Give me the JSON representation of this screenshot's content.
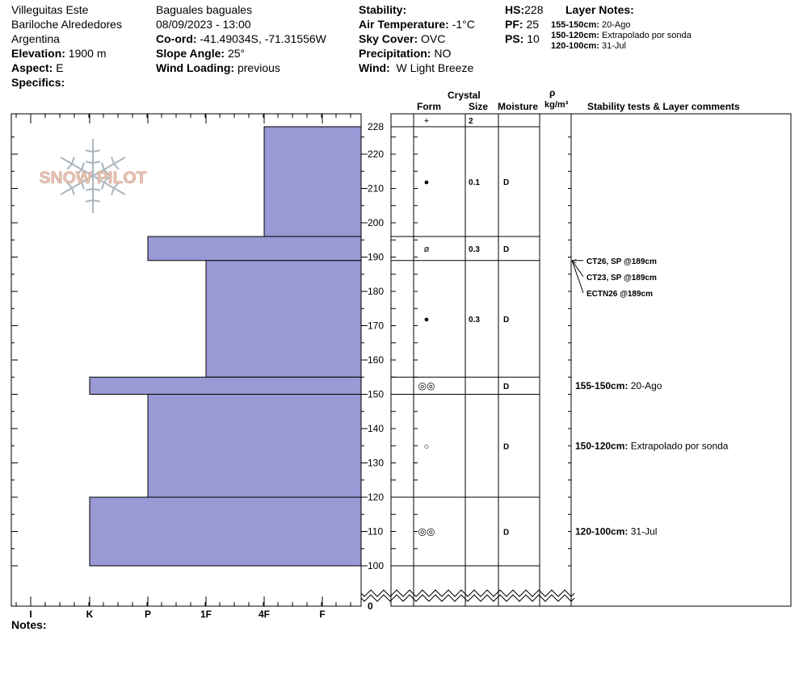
{
  "header": {
    "location1": "Villeguitas Este",
    "location2": "Bariloche Alrededores",
    "location3": "Argentina",
    "elevation_label": "Elevation:",
    "elevation_value": "1900 m",
    "aspect_label": "Aspect:",
    "aspect_value": "E",
    "specifics_label": "Specifics:",
    "observer": "Baguales baguales",
    "datetime": "08/09/2023 - 13:00",
    "coord_label": "Co-ord:",
    "coord_value": "-41.49034S, -71.31556W",
    "slope_label": "Slope Angle:",
    "slope_value": "25°",
    "wind_loading_label": "Wind Loading:",
    "wind_loading_value": "previous",
    "stability_label": "Stability:",
    "air_temp_label": "Air Temperature:",
    "air_temp_value": "-1°C",
    "sky_label": "Sky Cover:",
    "sky_value": "OVC",
    "precip_label": "Precipitation:",
    "precip_value": "NO",
    "wind_label": "Wind:",
    "wind_value": "W Light Breeze",
    "hs_label": "HS:",
    "hs_value": "228",
    "pf_label": "PF:",
    "pf_value": "25",
    "ps_label": "PS:",
    "ps_value": "10",
    "layer_notes_title": "Layer Notes:",
    "layer_notes": [
      {
        "range": "155-150cm:",
        "text": "20-Ago"
      },
      {
        "range": "150-120cm:",
        "text": "Extrapolado por sonda"
      },
      {
        "range": "120-100cm:",
        "text": "31-Jul"
      }
    ]
  },
  "columns": {
    "crystal": "Crystal",
    "form": "Form",
    "size": "Size",
    "moisture": "Moisture",
    "rho": "ρ",
    "density_unit": "kg/m³",
    "comments": "Stability tests & Layer comments"
  },
  "logo_text": "SNOW PILOT",
  "notes_label": "Notes:",
  "colors": {
    "bar_fill": "#9999d6",
    "bar_stroke": "#000000",
    "logo_text": "#e8c3b4",
    "logo_flake": "#a9b6bf"
  },
  "chart_data": {
    "type": "bar",
    "orientation": "horizontal",
    "title": "",
    "hardness_categories": [
      "I",
      "K",
      "P",
      "1F",
      "4F",
      "F"
    ],
    "ylim": [
      100,
      228
    ],
    "yticks": [
      100,
      110,
      120,
      130,
      140,
      150,
      160,
      170,
      180,
      190,
      200,
      210,
      220,
      228
    ],
    "y_zero_label": "0",
    "layers": [
      {
        "top": 228,
        "bottom": 196,
        "hardness": "4F"
      },
      {
        "top": 196,
        "bottom": 189,
        "hardness": "P"
      },
      {
        "top": 189,
        "bottom": 155,
        "hardness": "1F"
      },
      {
        "top": 155,
        "bottom": 150,
        "hardness": "K"
      },
      {
        "top": 150,
        "bottom": 120,
        "hardness": "P"
      },
      {
        "top": 120,
        "bottom": 100,
        "hardness": "K"
      }
    ],
    "grain_rows": [
      {
        "top": 228,
        "bottom": 228,
        "form": "+",
        "size": "2",
        "moisture": ""
      },
      {
        "top": 228,
        "bottom": 196,
        "form": "●",
        "size": "0.1",
        "moisture": "D"
      },
      {
        "top": 196,
        "bottom": 189,
        "form": "ø",
        "size": "0.3",
        "moisture": "D"
      },
      {
        "top": 189,
        "bottom": 155,
        "form": "●",
        "size": "0.3",
        "moisture": "D"
      },
      {
        "top": 155,
        "bottom": 150,
        "form": "◎◎",
        "size": "",
        "moisture": "D"
      },
      {
        "top": 150,
        "bottom": 120,
        "form": "○",
        "size": "",
        "moisture": "D"
      },
      {
        "top": 120,
        "bottom": 100,
        "form": "◎◎",
        "size": "",
        "moisture": "D"
      }
    ],
    "stability_tests": [
      {
        "depth": 189,
        "label": "CT26, SP @189cm"
      },
      {
        "depth": 189,
        "label": "CT23, SP @189cm"
      },
      {
        "depth": 189,
        "label": "ECTN26 @189cm"
      }
    ],
    "layer_comments": [
      {
        "top": 155,
        "bottom": 150,
        "range": "155-150cm:",
        "text": "20-Ago"
      },
      {
        "top": 150,
        "bottom": 120,
        "range": "150-120cm:",
        "text": "Extrapolado por sonda"
      },
      {
        "top": 120,
        "bottom": 100,
        "range": "120-100cm:",
        "text": "31-Jul"
      }
    ]
  }
}
